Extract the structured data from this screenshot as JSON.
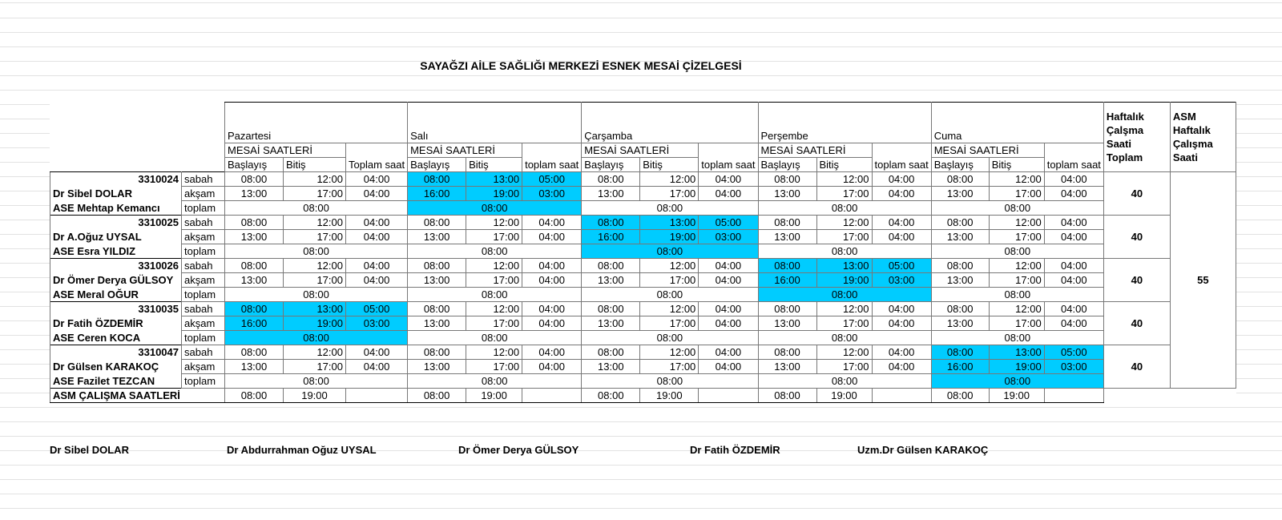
{
  "title": "SAYAĞZI AİLE SAĞLIĞI MERKEZİ ESNEK MESAİ ÇİZELGESİ",
  "colors": {
    "highlight": "#00ccff"
  },
  "days": [
    "Pazartesi",
    "Salı",
    "Çarşamba",
    "Perşembe",
    "Cuma"
  ],
  "subheader": "MESAİ SAATLERİ",
  "col_labels": {
    "start": "Başlayış",
    "end": "Bitiş",
    "total_first": "Toplam saat",
    "total": "toplam saat"
  },
  "weekly_header": "Haftalık Çalşma Saati Toplam",
  "asm_weekly_header": "ASM Haftalık Çalışma Saati",
  "asm_weekly_value": "55",
  "row_labels": {
    "morning": "sabah",
    "evening": "akşam",
    "total": "toplam"
  },
  "normal": {
    "morning": [
      "08:00",
      "12:00",
      "04:00"
    ],
    "evening": [
      "13:00",
      "17:00",
      "04:00"
    ],
    "total": "08:00"
  },
  "flex": {
    "morning": [
      "08:00",
      "13:00",
      "05:00"
    ],
    "evening": [
      "16:00",
      "19:00",
      "03:00"
    ],
    "total": "08:00"
  },
  "groups": [
    {
      "id": "3310024",
      "doctor": "Dr Sibel DOLAR",
      "ase": "ASE Mehtap Kemancı",
      "flex_day": 1,
      "weekly": "40"
    },
    {
      "id": "3310025",
      "doctor": "Dr A.Oğuz UYSAL",
      "ase": "ASE Esra YILDIZ",
      "flex_day": 2,
      "weekly": "40"
    },
    {
      "id": "3310026",
      "doctor": "Dr Ömer Derya GÜLSOY",
      "ase": "ASE Meral OĞUR",
      "flex_day": 3,
      "weekly": "40"
    },
    {
      "id": "3310035",
      "doctor": "Dr Fatih ÖZDEMİR",
      "ase": "ASE Ceren KOCA",
      "flex_day": 0,
      "weekly": "40"
    },
    {
      "id": "3310047",
      "doctor": "Dr Gülsen KARAKOÇ",
      "ase": "ASE Fazilet TEZCAN",
      "flex_day": 4,
      "weekly": "40"
    }
  ],
  "asm_row": {
    "label": "ASM ÇALIŞMA SAATLERİ",
    "start": "08:00",
    "end": "19:00"
  },
  "signatures": [
    "Dr Sibel DOLAR",
    "Dr Abdurrahman Oğuz UYSAL",
    "Dr Ömer Derya GÜLSOY",
    "Dr Fatih ÖZDEMİR",
    "Uzm.Dr Gülsen KARAKOÇ"
  ]
}
